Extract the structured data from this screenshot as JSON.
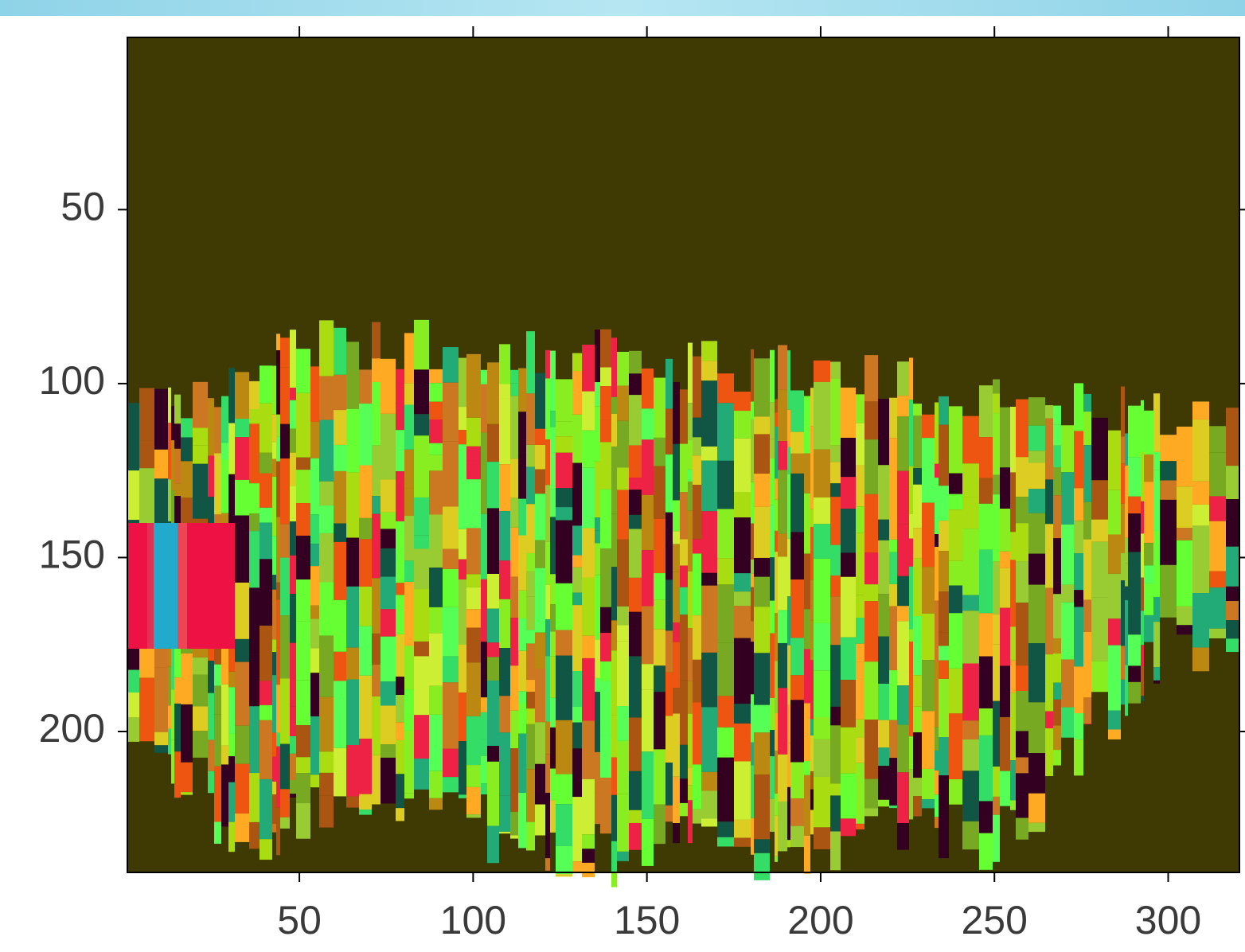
{
  "chart_data": {
    "type": "image",
    "xlim": [
      0.5,
      320.5
    ],
    "ylim": [
      240.5,
      0.5
    ],
    "y_reversed": true,
    "xticks": [
      50,
      100,
      150,
      200,
      250,
      300
    ],
    "yticks": [
      50,
      100,
      150,
      200
    ],
    "background": "#3f3a04",
    "axis_color": "#000000"
  }
}
